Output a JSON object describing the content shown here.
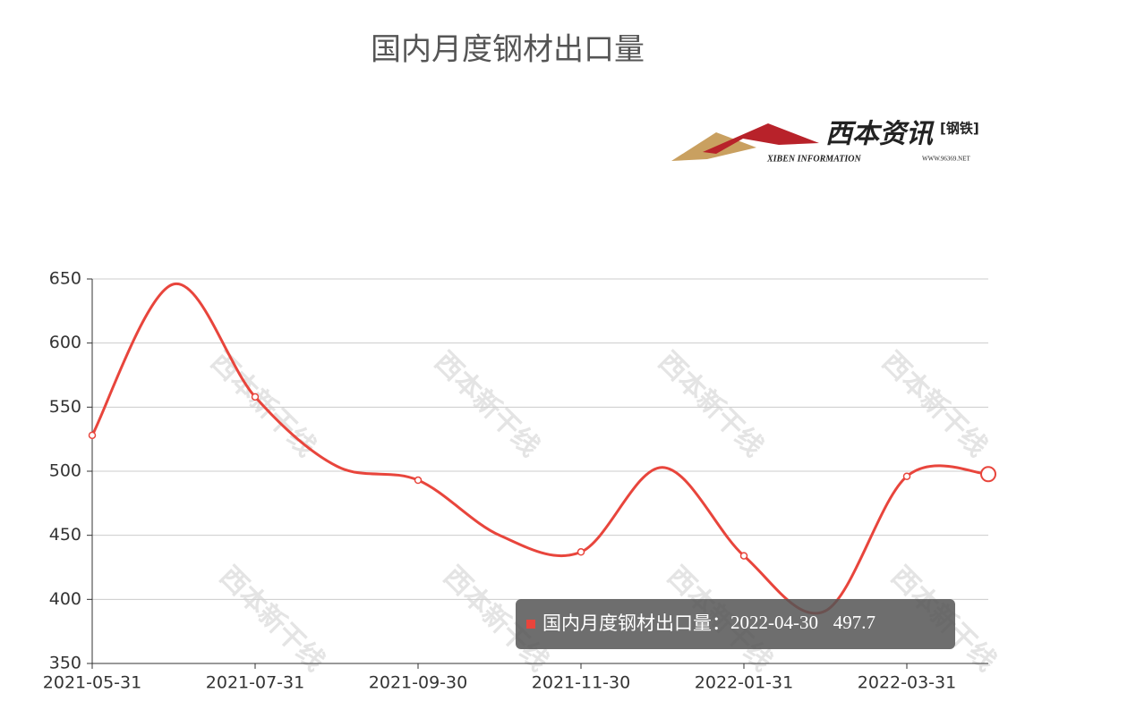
{
  "chart_data": {
    "type": "line",
    "title": "国内月度钢材出口量",
    "logo": {
      "name": "西本资讯",
      "tag": "[钢铁]",
      "english": "XIBEN INFORMATION",
      "site": "WWW.96369.NET"
    },
    "watermark": "西本新干线",
    "categories": [
      "2021-05-31",
      null,
      "2021-07-31",
      null,
      "2021-09-30",
      null,
      "2021-11-30",
      null,
      "2022-01-31",
      null,
      "2022-03-31",
      null
    ],
    "series": [
      {
        "name": "国内月度钢材出口量",
        "color": "#e8453c",
        "values": [
          528,
          646,
          558,
          504,
          493,
          450,
          437,
          503,
          434,
          391,
          496,
          497.7
        ]
      }
    ],
    "ylim": [
      350,
      650
    ],
    "yticks": [
      350,
      400,
      450,
      500,
      550,
      600,
      650
    ],
    "grid": true,
    "tooltip": {
      "x": "2022-04-30"
    }
  }
}
